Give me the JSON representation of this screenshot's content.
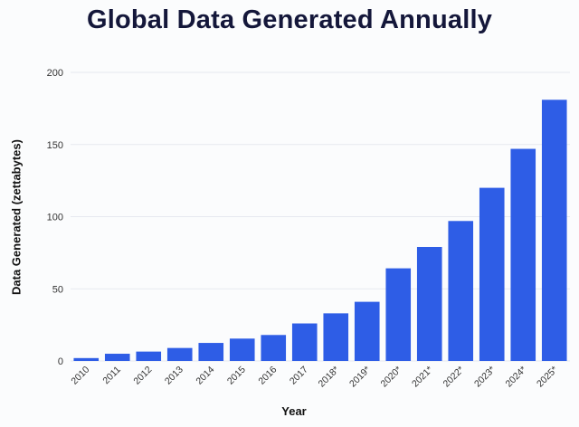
{
  "chart_data": {
    "type": "bar",
    "title": "Global Data Generated Annually",
    "xlabel": "Year",
    "ylabel": "Data Generated (zettabytes)",
    "categories": [
      "2010",
      "2011",
      "2012",
      "2013",
      "2014",
      "2015",
      "2016",
      "2017",
      "2018*",
      "2019*",
      "2020*",
      "2021*",
      "2022*",
      "2023*",
      "2024*",
      "2025*"
    ],
    "values": [
      2,
      5,
      6.5,
      9,
      12.5,
      15.5,
      18,
      26,
      33,
      41,
      64.2,
      79,
      97,
      120,
      147,
      181
    ],
    "ylim": [
      0,
      200
    ],
    "yticks": [
      "0",
      "50",
      "100",
      "150",
      "200"
    ],
    "grid": true,
    "bar_color": "#2e5de6"
  }
}
